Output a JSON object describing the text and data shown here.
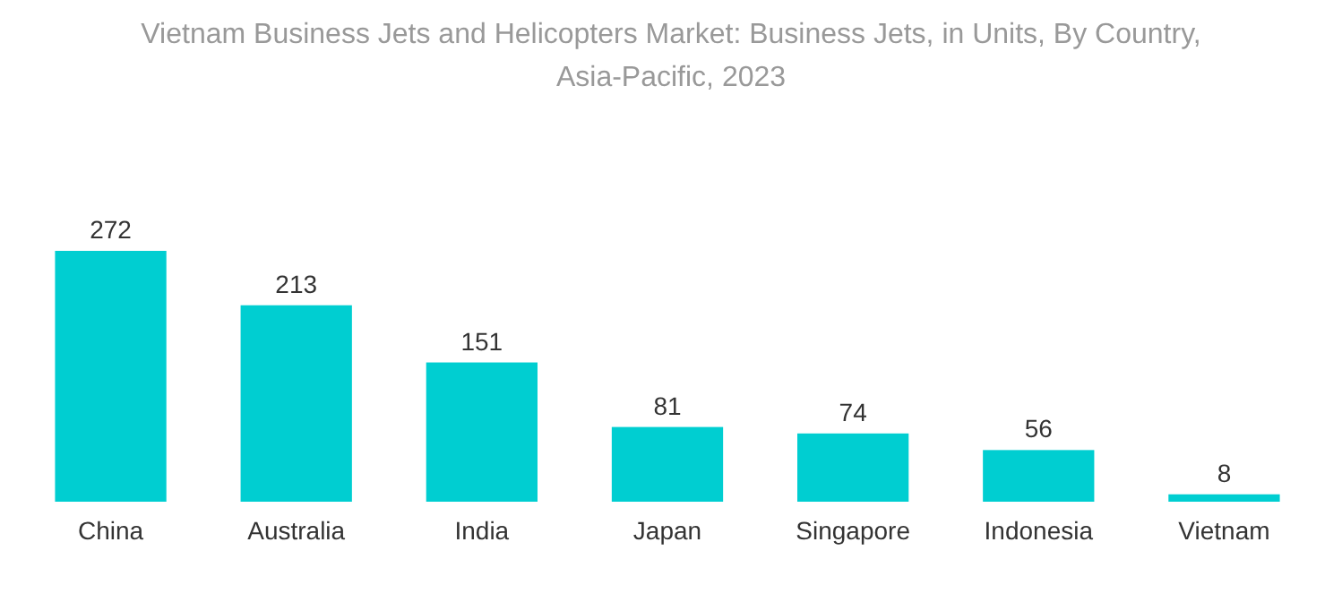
{
  "chart_data": {
    "type": "bar",
    "title": "Vietnam Business Jets and Helicopters Market: Business Jets, in Units, By Country, Asia-Pacific, 2023",
    "categories": [
      "China",
      "Australia",
      "India",
      "Japan",
      "Singapore",
      "Indonesia",
      "Vietnam"
    ],
    "values": [
      272,
      213,
      151,
      81,
      74,
      56,
      8
    ],
    "color": "#00ced1",
    "data_labels": true
  }
}
